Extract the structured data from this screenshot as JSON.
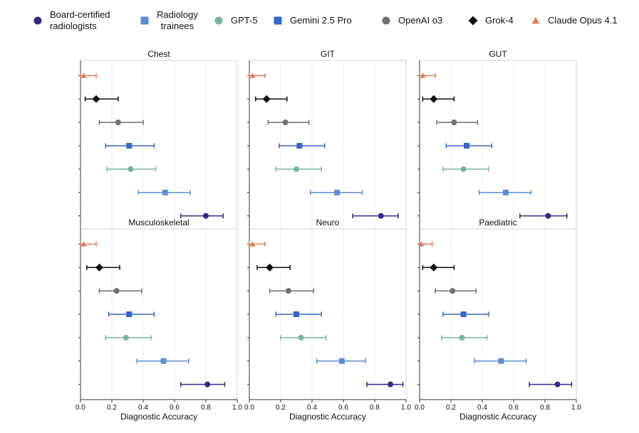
{
  "chart_data": {
    "type": "scatter",
    "subtype": "forest-plot-with-error-bars",
    "xlabel": "Diagnostic Accuracy",
    "xlim": [
      0.0,
      1.0
    ],
    "xticks": [
      "0.0",
      "0.2",
      "0.4",
      "0.6",
      "0.8",
      "1.0"
    ],
    "grid": "vertical",
    "legend_position": "top",
    "groups": [
      {
        "name": "Claude Opus 4.1",
        "label": "Claude Opus 4.1",
        "color": "#E07B5A",
        "marker": "triangle"
      },
      {
        "name": "Grok-4",
        "label": "Grok-4",
        "color": "#111111",
        "marker": "diamond"
      },
      {
        "name": "OpenAI o3",
        "label": "OpenAI o3",
        "color": "#707070",
        "marker": "circle"
      },
      {
        "name": "Gemini 2.5 Pro",
        "label": "Gemini 2.5 Pro",
        "color": "#3566C8",
        "marker": "square"
      },
      {
        "name": "GPT-5",
        "label": "GPT-5",
        "color": "#79B3A0",
        "marker": "circle"
      },
      {
        "name": "Radiology trainees",
        "label": "Radiology\ntrainees",
        "color": "#5B8FD6",
        "marker": "square"
      },
      {
        "name": "Board-certified radiologists",
        "label": "Board-certified\nradiologists",
        "color": "#2E2A86",
        "marker": "circle"
      }
    ],
    "legend_order": [
      "Board-certified radiologists",
      "Radiology trainees",
      "GPT-5",
      "Gemini 2.5 Pro",
      "OpenAI o3",
      "Grok-4",
      "Claude Opus 4.1"
    ],
    "panels": [
      {
        "title": "Chest",
        "points": [
          {
            "group": "Claude Opus 4.1",
            "value": 0.02,
            "lo": 0.0,
            "hi": 0.1
          },
          {
            "group": "Grok-4",
            "value": 0.1,
            "lo": 0.03,
            "hi": 0.24
          },
          {
            "group": "OpenAI o3",
            "value": 0.24,
            "lo": 0.12,
            "hi": 0.4
          },
          {
            "group": "Gemini 2.5 Pro",
            "value": 0.31,
            "lo": 0.16,
            "hi": 0.47
          },
          {
            "group": "GPT-5",
            "value": 0.32,
            "lo": 0.17,
            "hi": 0.48
          },
          {
            "group": "Radiology trainees",
            "value": 0.54,
            "lo": 0.37,
            "hi": 0.7
          },
          {
            "group": "Board-certified radiologists",
            "value": 0.8,
            "lo": 0.64,
            "hi": 0.91
          }
        ]
      },
      {
        "title": "GIT",
        "points": [
          {
            "group": "Claude Opus 4.1",
            "value": 0.02,
            "lo": 0.0,
            "hi": 0.1
          },
          {
            "group": "Grok-4",
            "value": 0.11,
            "lo": 0.04,
            "hi": 0.24
          },
          {
            "group": "OpenAI o3",
            "value": 0.23,
            "lo": 0.12,
            "hi": 0.38
          },
          {
            "group": "Gemini 2.5 Pro",
            "value": 0.32,
            "lo": 0.19,
            "hi": 0.48
          },
          {
            "group": "GPT-5",
            "value": 0.3,
            "lo": 0.17,
            "hi": 0.46
          },
          {
            "group": "Radiology trainees",
            "value": 0.56,
            "lo": 0.39,
            "hi": 0.72
          },
          {
            "group": "Board-certified radiologists",
            "value": 0.84,
            "lo": 0.66,
            "hi": 0.95
          }
        ]
      },
      {
        "title": "GUT",
        "points": [
          {
            "group": "Claude Opus 4.1",
            "value": 0.02,
            "lo": 0.0,
            "hi": 0.1
          },
          {
            "group": "Grok-4",
            "value": 0.09,
            "lo": 0.02,
            "hi": 0.22
          },
          {
            "group": "OpenAI o3",
            "value": 0.22,
            "lo": 0.11,
            "hi": 0.37
          },
          {
            "group": "Gemini 2.5 Pro",
            "value": 0.3,
            "lo": 0.17,
            "hi": 0.46
          },
          {
            "group": "GPT-5",
            "value": 0.28,
            "lo": 0.15,
            "hi": 0.44
          },
          {
            "group": "Radiology trainees",
            "value": 0.55,
            "lo": 0.38,
            "hi": 0.71
          },
          {
            "group": "Board-certified radiologists",
            "value": 0.82,
            "lo": 0.64,
            "hi": 0.94
          }
        ]
      },
      {
        "title": "Musculoskeletal",
        "points": [
          {
            "group": "Claude Opus 4.1",
            "value": 0.02,
            "lo": 0.0,
            "hi": 0.1
          },
          {
            "group": "Grok-4",
            "value": 0.12,
            "lo": 0.04,
            "hi": 0.25
          },
          {
            "group": "OpenAI o3",
            "value": 0.23,
            "lo": 0.12,
            "hi": 0.39
          },
          {
            "group": "Gemini 2.5 Pro",
            "value": 0.31,
            "lo": 0.18,
            "hi": 0.47
          },
          {
            "group": "GPT-5",
            "value": 0.29,
            "lo": 0.16,
            "hi": 0.45
          },
          {
            "group": "Radiology trainees",
            "value": 0.53,
            "lo": 0.36,
            "hi": 0.69
          },
          {
            "group": "Board-certified radiologists",
            "value": 0.81,
            "lo": 0.64,
            "hi": 0.92
          }
        ]
      },
      {
        "title": "Neuro",
        "points": [
          {
            "group": "Claude Opus 4.1",
            "value": 0.02,
            "lo": 0.0,
            "hi": 0.1
          },
          {
            "group": "Grok-4",
            "value": 0.13,
            "lo": 0.05,
            "hi": 0.26
          },
          {
            "group": "OpenAI o3",
            "value": 0.25,
            "lo": 0.13,
            "hi": 0.41
          },
          {
            "group": "Gemini 2.5 Pro",
            "value": 0.3,
            "lo": 0.17,
            "hi": 0.46
          },
          {
            "group": "GPT-5",
            "value": 0.33,
            "lo": 0.2,
            "hi": 0.49
          },
          {
            "group": "Radiology trainees",
            "value": 0.59,
            "lo": 0.43,
            "hi": 0.74
          },
          {
            "group": "Board-certified radiologists",
            "value": 0.9,
            "lo": 0.75,
            "hi": 0.98
          }
        ]
      },
      {
        "title": "Paediatric",
        "points": [
          {
            "group": "Claude Opus 4.1",
            "value": 0.01,
            "lo": 0.0,
            "hi": 0.08
          },
          {
            "group": "Grok-4",
            "value": 0.09,
            "lo": 0.02,
            "hi": 0.22
          },
          {
            "group": "OpenAI o3",
            "value": 0.21,
            "lo": 0.1,
            "hi": 0.36
          },
          {
            "group": "Gemini 2.5 Pro",
            "value": 0.28,
            "lo": 0.15,
            "hi": 0.44
          },
          {
            "group": "GPT-5",
            "value": 0.27,
            "lo": 0.14,
            "hi": 0.43
          },
          {
            "group": "Radiology trainees",
            "value": 0.52,
            "lo": 0.35,
            "hi": 0.68
          },
          {
            "group": "Board-certified radiologists",
            "value": 0.88,
            "lo": 0.7,
            "hi": 0.97
          }
        ]
      }
    ]
  }
}
